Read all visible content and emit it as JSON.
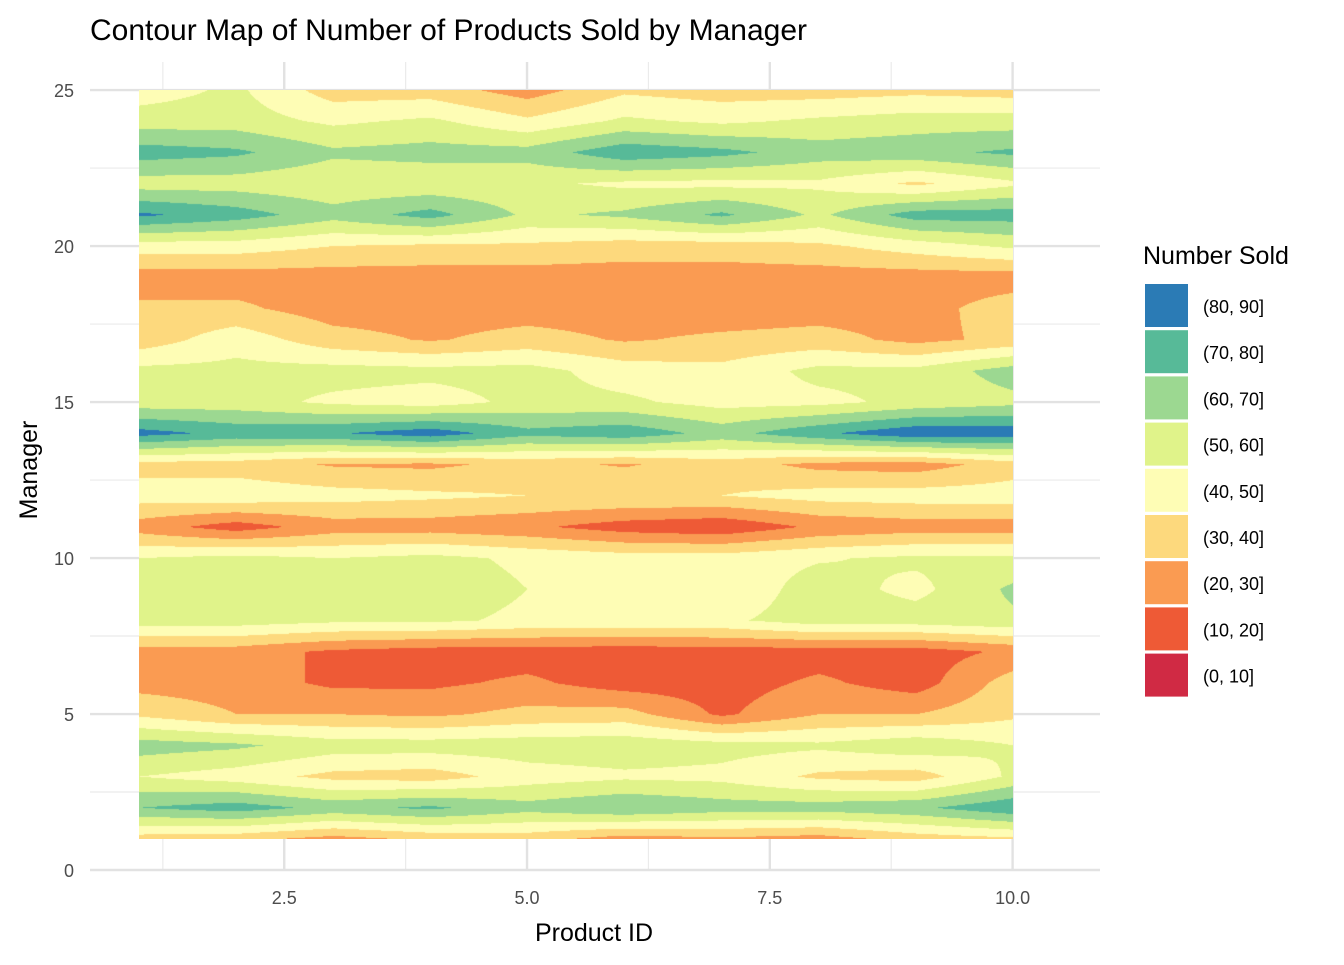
{
  "chart_data": {
    "type": "heatmap",
    "subtype": "filled-contour",
    "title": "Contour Map of Number of Products Sold by Manager",
    "xlabel": "Product ID",
    "ylabel": "Manager",
    "xlim": [
      0.5,
      10.9
    ],
    "ylim": [
      0,
      25.9
    ],
    "x_ticks": [
      "2.5",
      "5.0",
      "7.5",
      "10.0"
    ],
    "x_tick_values": [
      2.5,
      5.0,
      7.5,
      10.0
    ],
    "y_ticks": [
      "0",
      "5",
      "10",
      "15",
      "20",
      "25"
    ],
    "y_tick_values": [
      0,
      5,
      10,
      15,
      20,
      25
    ],
    "grid": true,
    "legend": {
      "title": "Number Sold",
      "position": "right",
      "entries": [
        {
          "label": "(80, 90]",
          "color": "#2B7BB5"
        },
        {
          "label": "(70, 80]",
          "color": "#57BA98"
        },
        {
          "label": "(60, 70]",
          "color": "#9CD891"
        },
        {
          "label": "(50, 60]",
          "color": "#E0F38A"
        },
        {
          "label": "(40, 50]",
          "color": "#FEFDB5"
        },
        {
          "label": "(30, 40]",
          "color": "#FDD97D"
        },
        {
          "label": "(20, 30]",
          "color": "#FA9B52"
        },
        {
          "label": "(10, 20]",
          "color": "#EE5A36"
        },
        {
          "label": "(0, 10]",
          "color": "#D02A44"
        }
      ]
    },
    "x": [
      1,
      2,
      3,
      4,
      5,
      6,
      7,
      8,
      9,
      10
    ],
    "y": [
      1,
      2,
      3,
      4,
      5,
      6,
      7,
      8,
      9,
      10,
      11,
      12,
      13,
      14,
      15,
      16,
      17,
      18,
      19,
      20,
      21,
      22,
      23,
      24,
      25
    ],
    "z": [
      [
        35,
        33,
        26,
        32,
        34,
        25,
        28,
        25,
        34,
        38
      ],
      [
        70,
        75,
        67,
        72,
        64,
        70,
        65,
        65,
        68,
        78
      ],
      [
        50,
        45,
        37,
        35,
        45,
        48,
        47,
        38,
        35,
        52
      ],
      [
        65,
        62,
        55,
        55,
        56,
        57,
        54,
        52,
        57,
        50
      ],
      [
        38,
        30,
        30,
        28,
        33,
        34,
        18,
        30,
        30,
        38
      ],
      [
        26,
        25,
        18,
        18,
        22,
        15,
        15,
        22,
        15,
        35
      ],
      [
        25,
        25,
        18,
        15,
        15,
        14,
        15,
        15,
        15,
        22
      ],
      [
        55,
        55,
        52,
        52,
        48,
        48,
        48,
        55,
        55,
        58
      ],
      [
        55,
        57,
        54,
        56,
        50,
        47,
        42,
        55,
        47,
        62
      ],
      [
        50,
        53,
        50,
        53,
        48,
        45,
        45,
        49,
        52,
        52
      ],
      [
        25,
        15,
        25,
        25,
        22,
        15,
        12,
        22,
        25,
        25
      ],
      [
        45,
        47,
        44,
        42,
        40,
        40,
        40,
        44,
        45,
        45
      ],
      [
        36,
        35,
        29,
        28,
        33,
        29,
        35,
        27,
        25,
        35
      ],
      [
        84,
        77,
        79,
        86,
        73,
        77,
        66,
        78,
        88,
        87
      ],
      [
        54,
        54,
        48,
        45,
        53,
        52,
        46,
        47,
        53,
        57
      ],
      [
        53,
        53,
        54,
        53,
        54,
        45,
        43,
        53,
        53,
        65
      ],
      [
        34,
        46,
        34,
        29,
        34,
        29,
        32,
        34,
        27,
        33
      ],
      [
        32,
        32,
        25,
        25,
        25,
        25,
        24,
        25,
        26,
        35
      ],
      [
        25,
        25,
        25,
        25,
        25,
        25,
        25,
        25,
        25,
        25
      ],
      [
        45,
        45,
        40,
        38,
        38,
        35,
        35,
        38,
        45,
        52
      ],
      [
        82,
        75,
        64,
        74,
        58,
        62,
        72,
        58,
        75,
        75
      ],
      [
        55,
        55,
        52,
        52,
        52,
        48,
        47,
        48,
        38,
        48
      ],
      [
        75,
        72,
        62,
        64,
        64,
        77,
        73,
        65,
        67,
        72
      ],
      [
        55,
        55,
        48,
        52,
        42,
        52,
        48,
        52,
        55,
        55
      ],
      [
        45,
        52,
        35,
        35,
        25,
        38,
        35,
        35,
        37,
        35
      ]
    ]
  }
}
